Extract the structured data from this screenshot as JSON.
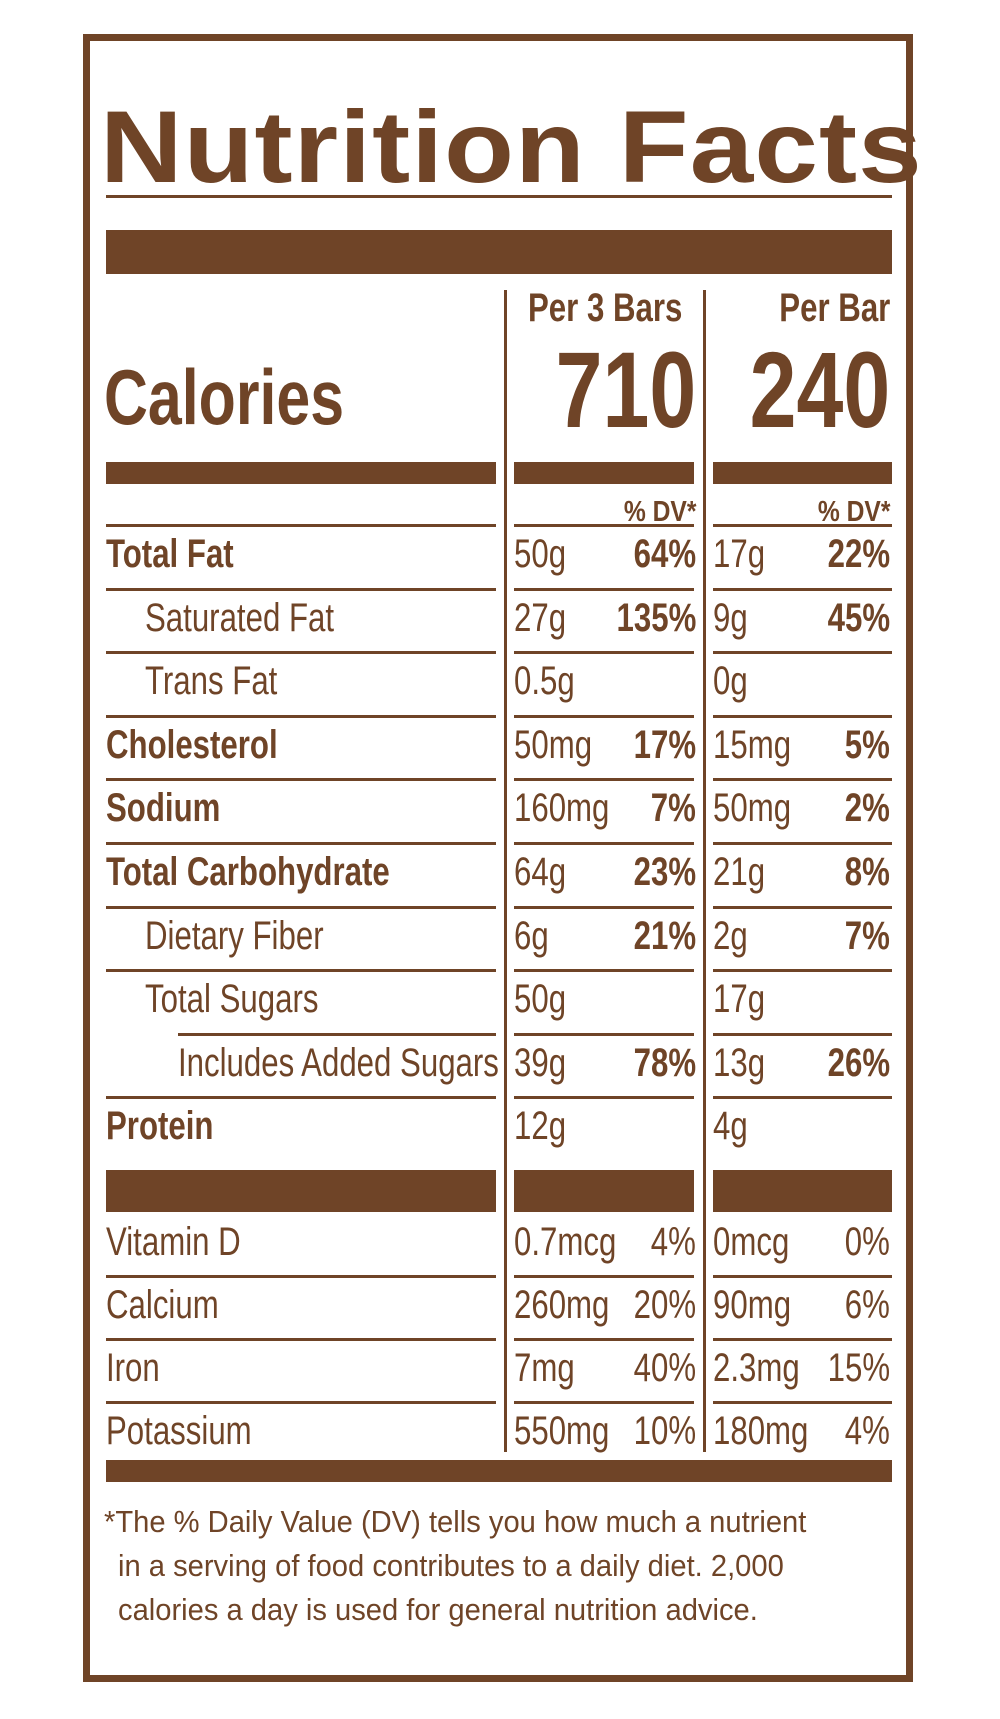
{
  "title": "Nutrition Facts",
  "calories": {
    "label": "Calories",
    "col1_header": "Per 3 Bars",
    "col1_value": "710",
    "col2_header": "Per Bar",
    "col2_value": "240"
  },
  "dv_header": "% DV*",
  "nutrients": [
    {
      "name": "Total Fat",
      "bold": true,
      "indent": 0,
      "a1": "50g",
      "p1": "64%",
      "a2": "17g",
      "p2": "22%"
    },
    {
      "name": "Saturated Fat",
      "bold": false,
      "indent": 1,
      "a1": "27g",
      "p1": "135%",
      "a2": "9g",
      "p2": "45%"
    },
    {
      "name": "Trans Fat",
      "bold": false,
      "indent": 1,
      "a1": "0.5g",
      "p1": "",
      "a2": "0g",
      "p2": ""
    },
    {
      "name": "Cholesterol",
      "bold": true,
      "indent": 0,
      "a1": "50mg",
      "p1": "17%",
      "a2": "15mg",
      "p2": "5%"
    },
    {
      "name": "Sodium",
      "bold": true,
      "indent": 0,
      "a1": "160mg",
      "p1": "7%",
      "a2": "50mg",
      "p2": "2%"
    },
    {
      "name": "Total Carbohydrate",
      "bold": true,
      "indent": 0,
      "a1": "64g",
      "p1": "23%",
      "a2": "21g",
      "p2": "8%"
    },
    {
      "name": "Dietary Fiber",
      "bold": false,
      "indent": 1,
      "a1": "6g",
      "p1": "21%",
      "a2": "2g",
      "p2": "7%"
    },
    {
      "name": "Total Sugars",
      "bold": false,
      "indent": 1,
      "a1": "50g",
      "p1": "",
      "a2": "17g",
      "p2": ""
    },
    {
      "name": "Includes Added Sugars",
      "bold": false,
      "indent": 2,
      "a1": "39g",
      "p1": "78%",
      "a2": "13g",
      "p2": "26%"
    },
    {
      "name": "Protein",
      "bold": true,
      "indent": 0,
      "a1": "12g",
      "p1": "",
      "a2": "4g",
      "p2": ""
    }
  ],
  "vitamins": [
    {
      "name": "Vitamin D",
      "a1": "0.7mcg",
      "p1": "4%",
      "a2": "0mcg",
      "p2": "0%"
    },
    {
      "name": "Calcium",
      "a1": "260mg",
      "p1": "20%",
      "a2": "90mg",
      "p2": "6%"
    },
    {
      "name": "Iron",
      "a1": "7mg",
      "p1": "40%",
      "a2": "2.3mg",
      "p2": "15%"
    },
    {
      "name": "Potassium",
      "a1": "550mg",
      "p1": "10%",
      "a2": "180mg",
      "p2": "4%"
    }
  ],
  "footnote": {
    "line1": "*The % Daily Value (DV) tells you how much a nutrient",
    "line2": "in a serving of food contributes to a daily diet. 2,000",
    "line3": "calories a day is used for general nutrition advice."
  },
  "colors": {
    "label": "#6f4427",
    "background": "#ffffff"
  }
}
